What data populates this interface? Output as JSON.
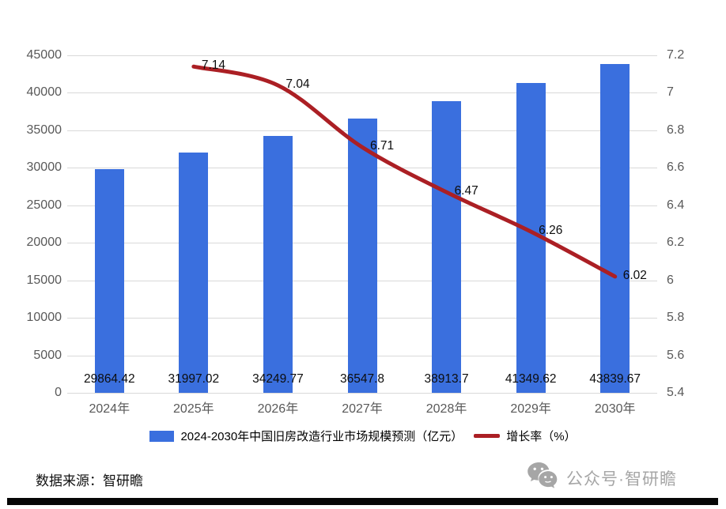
{
  "chart_data": {
    "type": "bar",
    "subtype": "combo-bar-line",
    "categories": [
      "2024年",
      "2025年",
      "2026年",
      "2027年",
      "2028年",
      "2029年",
      "2030年"
    ],
    "series": [
      {
        "name": "2024-2030年中国旧房改造行业市场规模预测（亿元）",
        "type": "bar",
        "axis": "left",
        "values": [
          29864.42,
          31997.02,
          34249.77,
          36547.8,
          38913.7,
          41349.62,
          43839.67
        ],
        "value_labels": [
          "29864.42",
          "31997.02",
          "34249.77",
          "36547.8",
          "38913.7",
          "41349.62",
          "43839.67"
        ]
      },
      {
        "name": "增长率（%）",
        "type": "line",
        "axis": "right",
        "categories": [
          "2025年",
          "2026年",
          "2027年",
          "2028年",
          "2029年",
          "2030年"
        ],
        "values": [
          7.14,
          7.04,
          6.71,
          6.47,
          6.26,
          6.02
        ],
        "value_labels": [
          "7.14",
          "7.04",
          "6.71",
          "6.47",
          "6.26",
          "6.02"
        ]
      }
    ],
    "left_axis": {
      "min": 0,
      "max": 45000,
      "step": 5000,
      "ticks": [
        "0",
        "5000",
        "10000",
        "15000",
        "20000",
        "25000",
        "30000",
        "35000",
        "40000",
        "45000"
      ]
    },
    "right_axis": {
      "min": 5.4,
      "max": 7.2,
      "step": 0.2,
      "ticks": [
        "5.4",
        "5.6",
        "5.8",
        "6",
        "6.2",
        "6.4",
        "6.6",
        "6.8",
        "7",
        "7.2"
      ]
    },
    "grid": true,
    "legend_position": "bottom",
    "title": ""
  },
  "colors": {
    "bar": "#3a6fde",
    "line": "#ab1f24",
    "grid": "#d9d9d9",
    "axis_text": "#595959",
    "label_text": "#0d0d0d",
    "watermark": "#a6a6a6",
    "divider": "#060606"
  },
  "source_note": "数据来源：智研瞻",
  "watermark": {
    "icon": "wechat-icon",
    "text": "公众号·智研瞻"
  }
}
